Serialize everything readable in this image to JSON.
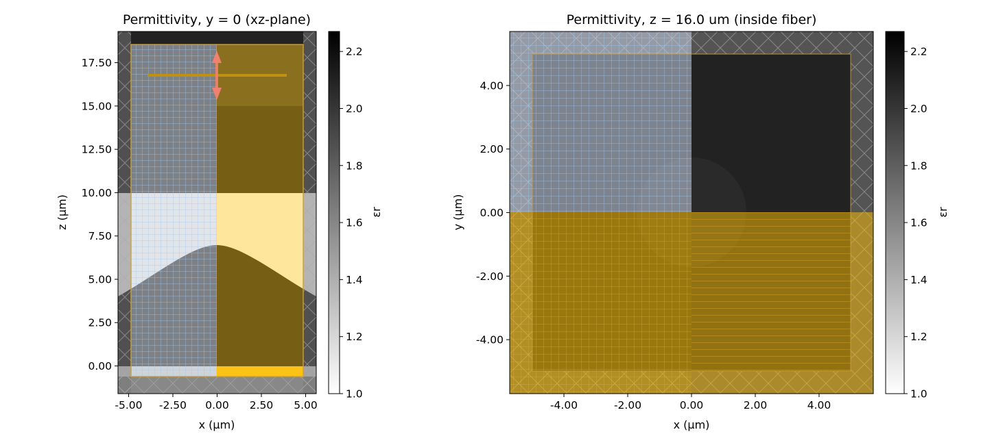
{
  "chart_data": [
    {
      "type": "heatmap",
      "title": "Permittivity, y = 0 (xz-plane)",
      "xlabel": "x (µm)",
      "ylabel": "z (µm)",
      "xlim": [
        -5.6,
        5.6
      ],
      "ylim": [
        -1.6,
        19.3
      ],
      "xticks": [
        -5.0,
        -2.5,
        0.0,
        2.5,
        5.0
      ],
      "xtick_labels": [
        "-5.00",
        "-2.50",
        "0.00",
        "2.50",
        "5.00"
      ],
      "yticks": [
        0.0,
        2.5,
        5.0,
        7.5,
        10.0,
        12.5,
        15.0,
        17.5
      ],
      "ytick_labels": [
        "0.00",
        "2.50",
        "5.00",
        "7.50",
        "10.00",
        "12.50",
        "15.00",
        "17.50"
      ],
      "regions": [
        {
          "name": "pml-lower",
          "x": [
            -5.6,
            5.6
          ],
          "z": [
            -1.6,
            -0.6
          ],
          "eps": 2.1
        },
        {
          "name": "substrate",
          "x": [
            -5.6,
            5.6
          ],
          "z": [
            -0.6,
            0.0
          ],
          "eps": 1.1
        },
        {
          "name": "fiber-core",
          "x": [
            -5.6,
            5.6
          ],
          "z": [
            10.0,
            19.3
          ],
          "eps": 2.27
        },
        {
          "name": "gap-medium",
          "x": [
            -5.6,
            5.6
          ],
          "z": [
            0.0,
            10.0
          ],
          "eps": 1.0
        },
        {
          "name": "taper",
          "x": [
            -5.6,
            5.6
          ],
          "z_profile": "gaussian",
          "z_peak": 7.0,
          "z_at_edge": 4.3,
          "eps": 2.27
        }
      ],
      "source": {
        "x": [
          -4.0,
          4.0
        ],
        "z": 16.8,
        "polarization": "z"
      },
      "symmetry_plane_x": 0.0,
      "colorbar": {
        "label": "εr",
        "range": [
          1.0,
          2.27
        ],
        "ticks": [
          1.0,
          1.2,
          1.4,
          1.6,
          1.8,
          2.0,
          2.2
        ],
        "tick_labels": [
          "1.0",
          "1.2",
          "1.4",
          "1.6",
          "1.8",
          "2.0",
          "2.2"
        ],
        "cmap": "gray_r"
      }
    },
    {
      "type": "heatmap",
      "title": "Permittivity, z = 16.0 um (inside fiber)",
      "xlabel": "x (µm)",
      "ylabel": "y (µm)",
      "xlim": [
        -5.7,
        5.7
      ],
      "ylim": [
        -5.7,
        5.7
      ],
      "xticks": [
        -4.0,
        -2.0,
        0.0,
        2.0,
        4.0
      ],
      "xtick_labels": [
        "-4.00",
        "-2.00",
        "0.00",
        "2.00",
        "4.00"
      ],
      "yticks": [
        -4.0,
        -2.0,
        0.0,
        2.0,
        4.0
      ],
      "ytick_labels": [
        "-4.00",
        "-2.00",
        "0.00",
        "2.00",
        "4.00"
      ],
      "regions": [
        {
          "name": "fiber-core",
          "x": [
            -5.7,
            5.7
          ],
          "y": [
            -5.7,
            5.7
          ],
          "eps": 2.27
        }
      ],
      "symmetry_plane_x": 0.0,
      "symmetry_plane_y": 0.0,
      "colorbar": {
        "label": "εr",
        "range": [
          1.0,
          2.27
        ],
        "ticks": [
          1.0,
          1.2,
          1.4,
          1.6,
          1.8,
          2.0,
          2.2
        ],
        "tick_labels": [
          "1.0",
          "1.2",
          "1.4",
          "1.6",
          "1.8",
          "2.0",
          "2.2"
        ],
        "cmap": "gray_r"
      }
    }
  ],
  "colors": {
    "overlay_gold": "#ffc000",
    "overlay_dark_gold": "#b8860b",
    "grid_blue": "#9ec8f0",
    "source_red": "#f08070",
    "source_line": "#c09010"
  }
}
